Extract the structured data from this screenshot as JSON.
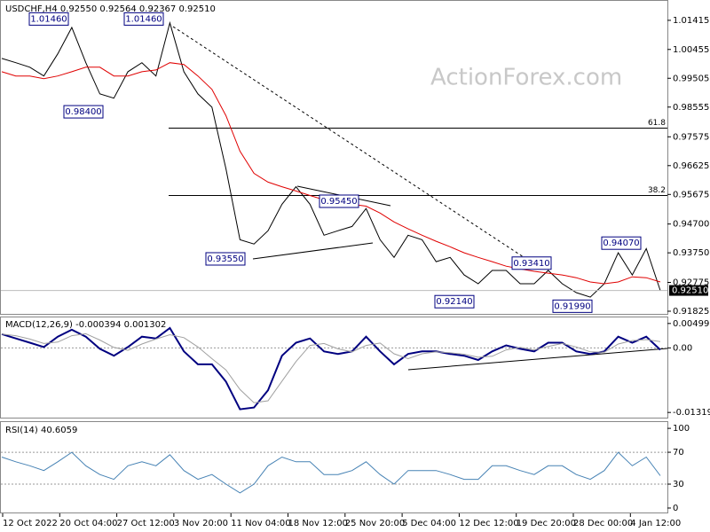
{
  "chart_data": [
    {
      "type": "line",
      "title": "USDCHF,H4 0.92550 0.92564 0.92367 0.92510",
      "watermark": "ActionForex.com",
      "ylim": [
        0.91708,
        1.02056
      ],
      "yticks": [
        {
          "value": 1.01415,
          "label": "1.01415"
        },
        {
          "value": 1.00455,
          "label": "1.00455"
        },
        {
          "value": 0.99505,
          "label": "0.99505"
        },
        {
          "value": 0.98555,
          "label": "0.98555"
        },
        {
          "value": 0.97575,
          "label": "0.97575"
        },
        {
          "value": 0.96625,
          "label": "0.96625"
        },
        {
          "value": 0.95675,
          "label": "0.95675"
        },
        {
          "value": 0.947,
          "label": "0.94700"
        },
        {
          "value": 0.9375,
          "label": "0.93750"
        },
        {
          "value": 0.92775,
          "label": "0.92775"
        },
        {
          "value": 0.91825,
          "label": "0.91825"
        }
      ],
      "last_price": {
        "value": 0.9251,
        "label": "0.92510"
      },
      "levels": [
        {
          "value": 0.9786,
          "label": "61.8"
        },
        {
          "value": 0.9564,
          "label": "38.2"
        }
      ],
      "annotations": [
        {
          "value": 1.0146,
          "label": "1.01460"
        },
        {
          "value": 1.0146,
          "label": "1.01460"
        },
        {
          "value": 0.984,
          "label": "0.98400"
        },
        {
          "value": 0.9355,
          "label": "0.93550"
        },
        {
          "value": 0.9545,
          "label": "0.95450"
        },
        {
          "value": 0.9341,
          "label": "0.93410"
        },
        {
          "value": 0.9214,
          "label": "0.92140"
        },
        {
          "value": 0.9199,
          "label": "0.91990"
        },
        {
          "value": 0.9407,
          "label": "0.94070"
        }
      ],
      "series": [
        {
          "color": "#000000",
          "values": [
            1.0016,
            1.0002,
            0.9987,
            0.9958,
            1.0031,
            1.0118,
            1.0002,
            0.9899,
            0.9885,
            0.9972,
            1.0002,
            0.9958,
            1.0133,
            0.9972,
            0.9899,
            0.9855,
            0.9652,
            0.9418,
            0.9404,
            0.9448,
            0.9535,
            0.9593,
            0.9535,
            0.9433,
            0.9448,
            0.9462,
            0.9521,
            0.9418,
            0.936,
            0.9433,
            0.9418,
            0.9346,
            0.936,
            0.9302,
            0.9273,
            0.9317,
            0.9317,
            0.9273,
            0.9273,
            0.9317,
            0.9273,
            0.9244,
            0.9229,
            0.9273,
            0.9375,
            0.9302,
            0.9389,
            0.9251
          ]
        },
        {
          "color": "#e00000",
          "values": [
            0.9972,
            0.9958,
            0.9958,
            0.9949,
            0.9958,
            0.9972,
            0.9987,
            0.9987,
            0.9958,
            0.9958,
            0.9972,
            0.9978,
            1.0002,
            0.9996,
            0.9958,
            0.9914,
            0.9827,
            0.971,
            0.9637,
            0.9608,
            0.9593,
            0.9579,
            0.9564,
            0.955,
            0.9541,
            0.9535,
            0.9529,
            0.9506,
            0.9477,
            0.9454,
            0.9433,
            0.9413,
            0.9395,
            0.9375,
            0.936,
            0.9346,
            0.9331,
            0.9322,
            0.9314,
            0.9308,
            0.9302,
            0.9293,
            0.9279,
            0.9273,
            0.9279,
            0.9296,
            0.9293,
            0.9279
          ]
        }
      ]
    },
    {
      "type": "line",
      "title": "MACD(12,26,9) -0.000394 0.001302",
      "ylim": [
        -0.01443,
        0.00623
      ],
      "yticks": [
        0.004993,
        {
          "value": 0,
          "label": "0.00"
        },
        -0.013193
      ],
      "hlines": [
        0
      ],
      "series": [
        {
          "color": "#000080",
          "values": [
            0.00282,
            0.00194,
            0.00106,
            0.00018,
            0.0023,
            0.00371,
            0.0023,
            -0.00018,
            -0.00159,
            0.00018,
            0.0023,
            0.00194,
            0.00406,
            -0.00071,
            -0.00335,
            -0.00335,
            -0.00689,
            -0.01254,
            -0.01218,
            -0.00865,
            -0.00159,
            0.00106,
            0.00194,
            -0.00071,
            -0.00124,
            -0.00071,
            0.0023,
            -0.00071,
            -0.00335,
            -0.00124,
            -0.00071,
            -0.00071,
            -0.00124,
            -0.00159,
            -0.00247,
            -0.00071,
            0.00053,
            -0.00018,
            -0.00071,
            0.00106,
            0.00106,
            -0.00071,
            -0.00124,
            -0.00071,
            0.0023,
            0.00106,
            0.0023,
            -0.00039
          ]
        },
        {
          "color": "#a0a0a0",
          "values": [
            0.00282,
            0.0025,
            0.0018,
            0.0009,
            0.0012,
            0.0025,
            0.0029,
            0.0016,
            0.0001,
            -0.0005,
            0.0008,
            0.0018,
            0.0027,
            0.0021,
            0.0002,
            -0.0022,
            -0.0045,
            -0.0085,
            -0.0112,
            -0.0108,
            -0.0068,
            -0.0028,
            0.0005,
            0.0009,
            -0.0002,
            -0.0008,
            0.0005,
            0.001,
            -0.0012,
            -0.0022,
            -0.0012,
            -0.0008,
            -0.001,
            -0.0013,
            -0.0019,
            -0.0017,
            -0.0004,
            0.0001,
            -0.0004,
            0.0003,
            0.0009,
            0.0002,
            -0.0008,
            -0.0009,
            0.0008,
            0.0015,
            0.0017,
            0.0013
          ]
        }
      ]
    },
    {
      "type": "line",
      "title": "RSI(14) 40.6059",
      "ylim": [
        -6.7,
        107.9
      ],
      "yticks": [
        100,
        70,
        30,
        0
      ],
      "hlines": [
        70,
        30
      ],
      "xticklabels": [
        "12 Oct 2022",
        "20 Oct 04:00",
        "27 Oct 12:00",
        "3 Nov 20:00",
        "11 Nov 04:00",
        "18 Nov 12:00",
        "25 Nov 20:00",
        "5 Dec 04:00",
        "12 Dec 12:00",
        "19 Dec 20:00",
        "28 Dec 00:00",
        "4 Jan 12:00"
      ],
      "series": [
        {
          "color": "#4682b4",
          "values": [
            64,
            58,
            53,
            47,
            58,
            70,
            53,
            42,
            36,
            53,
            58,
            53,
            67,
            47,
            36,
            42,
            30,
            19,
            30,
            53,
            64,
            58,
            58,
            42,
            42,
            47,
            58,
            42,
            30,
            47,
            47,
            47,
            42,
            36,
            36,
            53,
            53,
            47,
            42,
            53,
            53,
            42,
            36,
            47,
            70,
            53,
            64,
            40.6
          ]
        }
      ]
    }
  ]
}
